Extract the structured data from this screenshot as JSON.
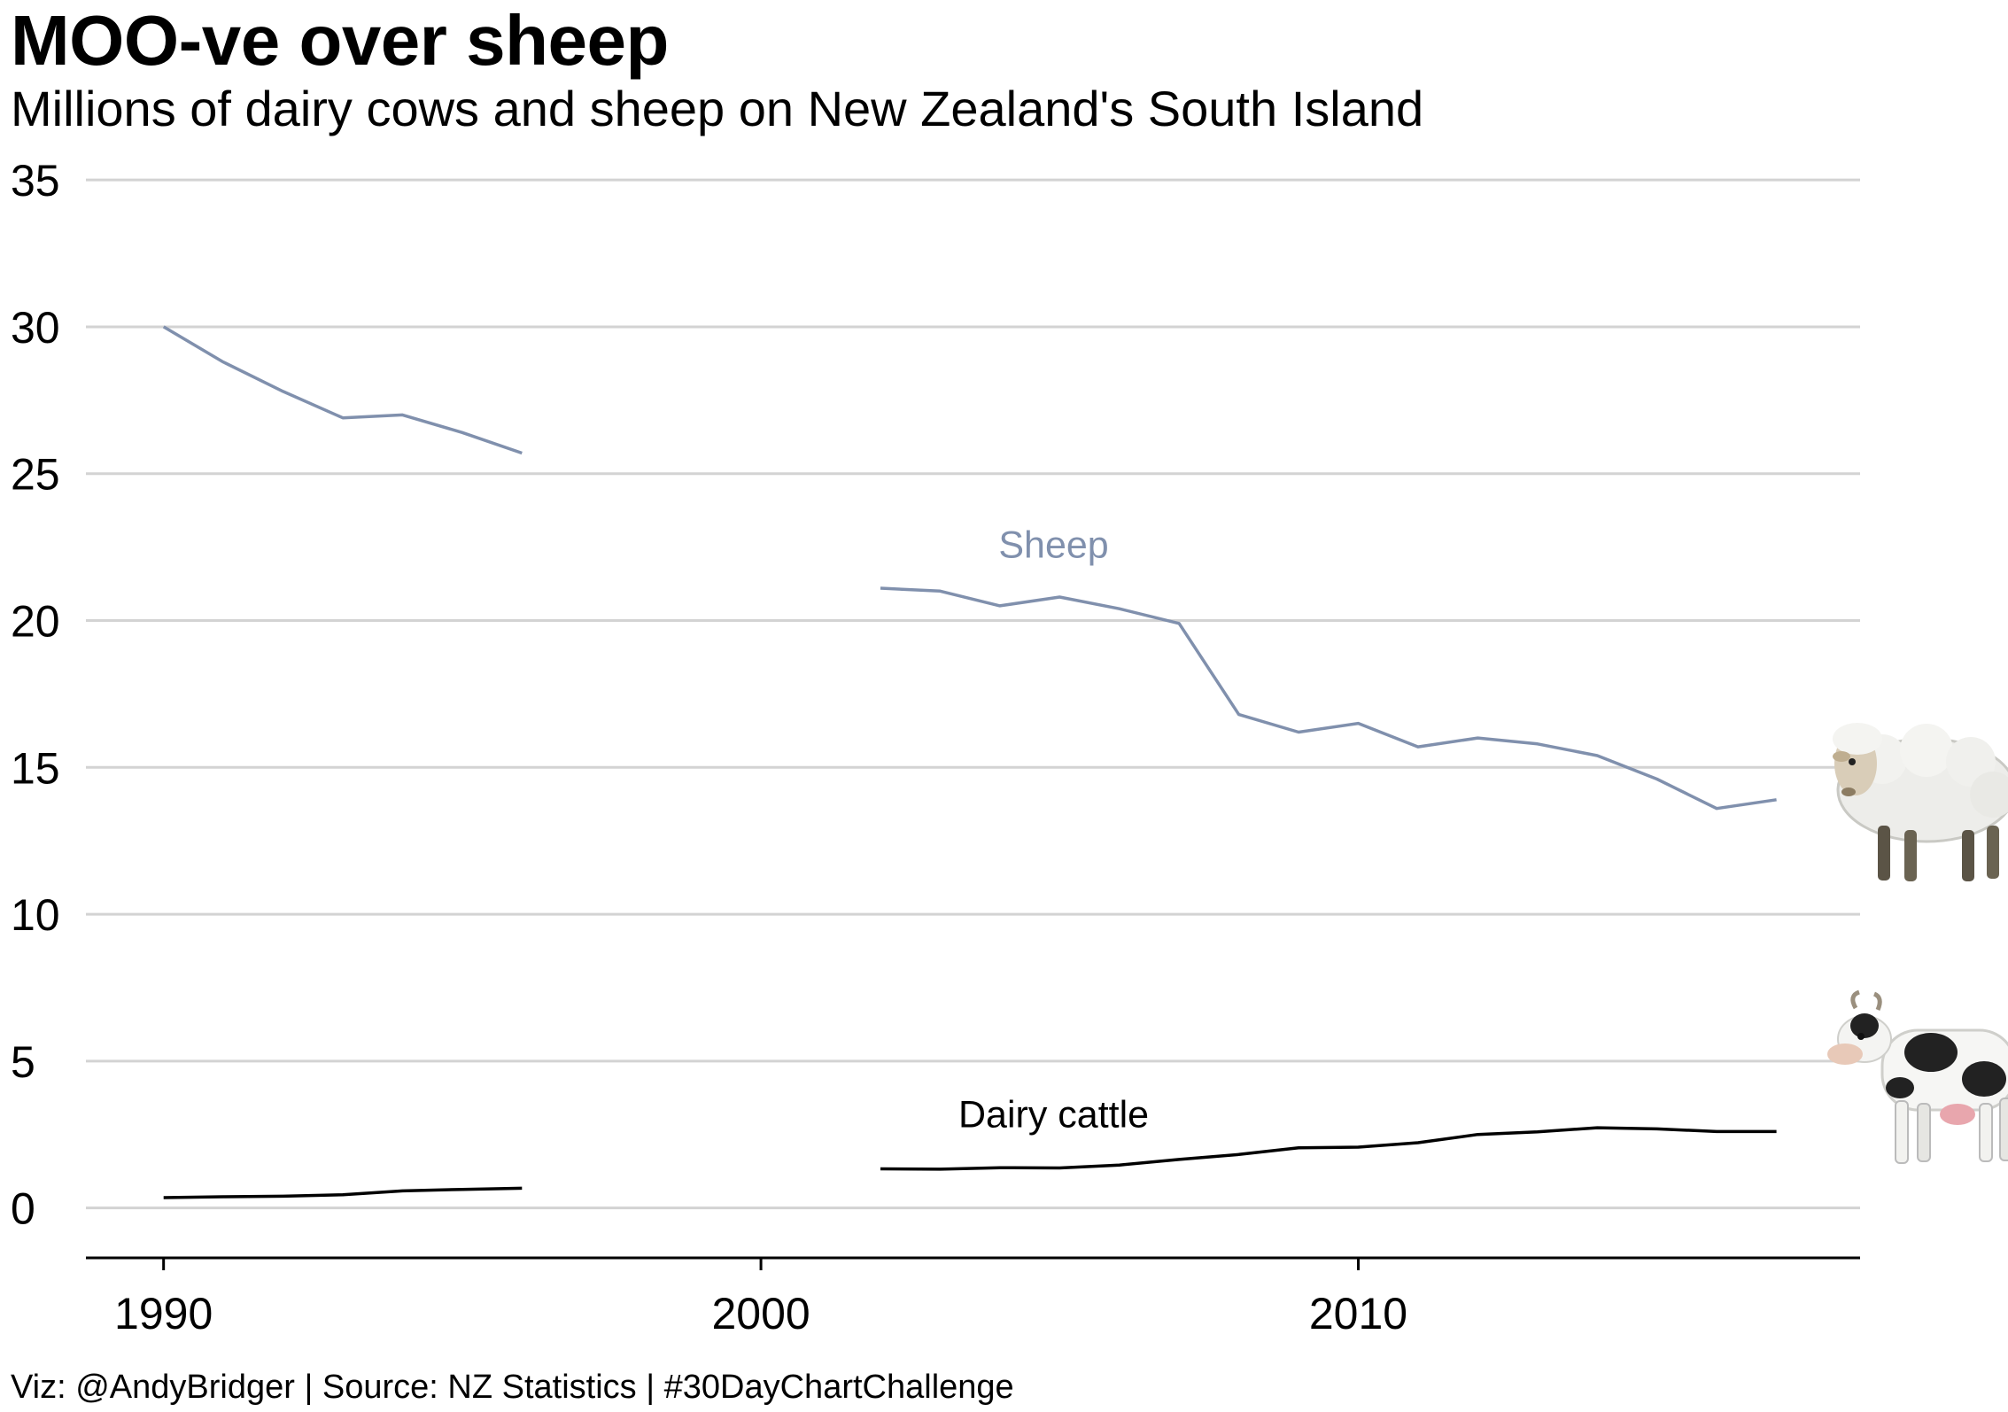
{
  "chart_data": {
    "type": "line",
    "title": "MOO-ve over sheep",
    "subtitle": "Millions of dairy cows and sheep on New Zealand's South Island",
    "caption": "Viz: @AndyBridger | Source: NZ Statistics | #30DayChartChallenge",
    "xlabel": "",
    "ylabel": "",
    "xlim": [
      1988.7,
      2018.4
    ],
    "ylim": [
      -1.7,
      36
    ],
    "x_ticks": [
      1990,
      2000,
      2010
    ],
    "y_ticks": [
      0,
      5,
      10,
      15,
      20,
      25,
      30,
      35
    ],
    "grid": "horizontal",
    "legend": "none",
    "series": [
      {
        "name": "Sheep",
        "color": "#8090ad",
        "segments": [
          {
            "x": [
              1990,
              1991,
              1992,
              1993,
              1994,
              1995,
              1996
            ],
            "y": [
              30.0,
              28.8,
              27.8,
              26.9,
              27.0,
              26.4,
              25.7
            ]
          },
          {
            "x": [
              2002,
              2003,
              2004,
              2005,
              2006,
              2007,
              2008,
              2009,
              2010,
              2011,
              2012,
              2013,
              2014,
              2015,
              2016,
              2017
            ],
            "y": [
              21.1,
              21.0,
              20.5,
              20.8,
              20.4,
              19.9,
              16.8,
              16.2,
              16.5,
              15.7,
              16.0,
              15.8,
              15.4,
              14.6,
              13.6,
              13.9
            ]
          }
        ],
        "label_position": {
          "x": 2004.9,
          "y": 22.6
        },
        "icon": "sheep-icon"
      },
      {
        "name": "Dairy cattle",
        "color": "#000000",
        "segments": [
          {
            "x": [
              1990,
              1991,
              1992,
              1993,
              1994,
              1995,
              1996
            ],
            "y": [
              0.35,
              0.38,
              0.4,
              0.45,
              0.58,
              0.63,
              0.67
            ]
          },
          {
            "x": [
              2002,
              2003,
              2004,
              2005,
              2006,
              2007,
              2008,
              2009,
              2010,
              2011,
              2012,
              2013,
              2014,
              2015,
              2016,
              2017
            ],
            "y": [
              1.33,
              1.32,
              1.37,
              1.36,
              1.46,
              1.65,
              1.82,
              2.05,
              2.07,
              2.22,
              2.5,
              2.59,
              2.73,
              2.69,
              2.6,
              2.6
            ]
          }
        ],
        "label_position": {
          "x": 2004.9,
          "y": 3.2
        },
        "icon": "cow-icon"
      }
    ]
  }
}
